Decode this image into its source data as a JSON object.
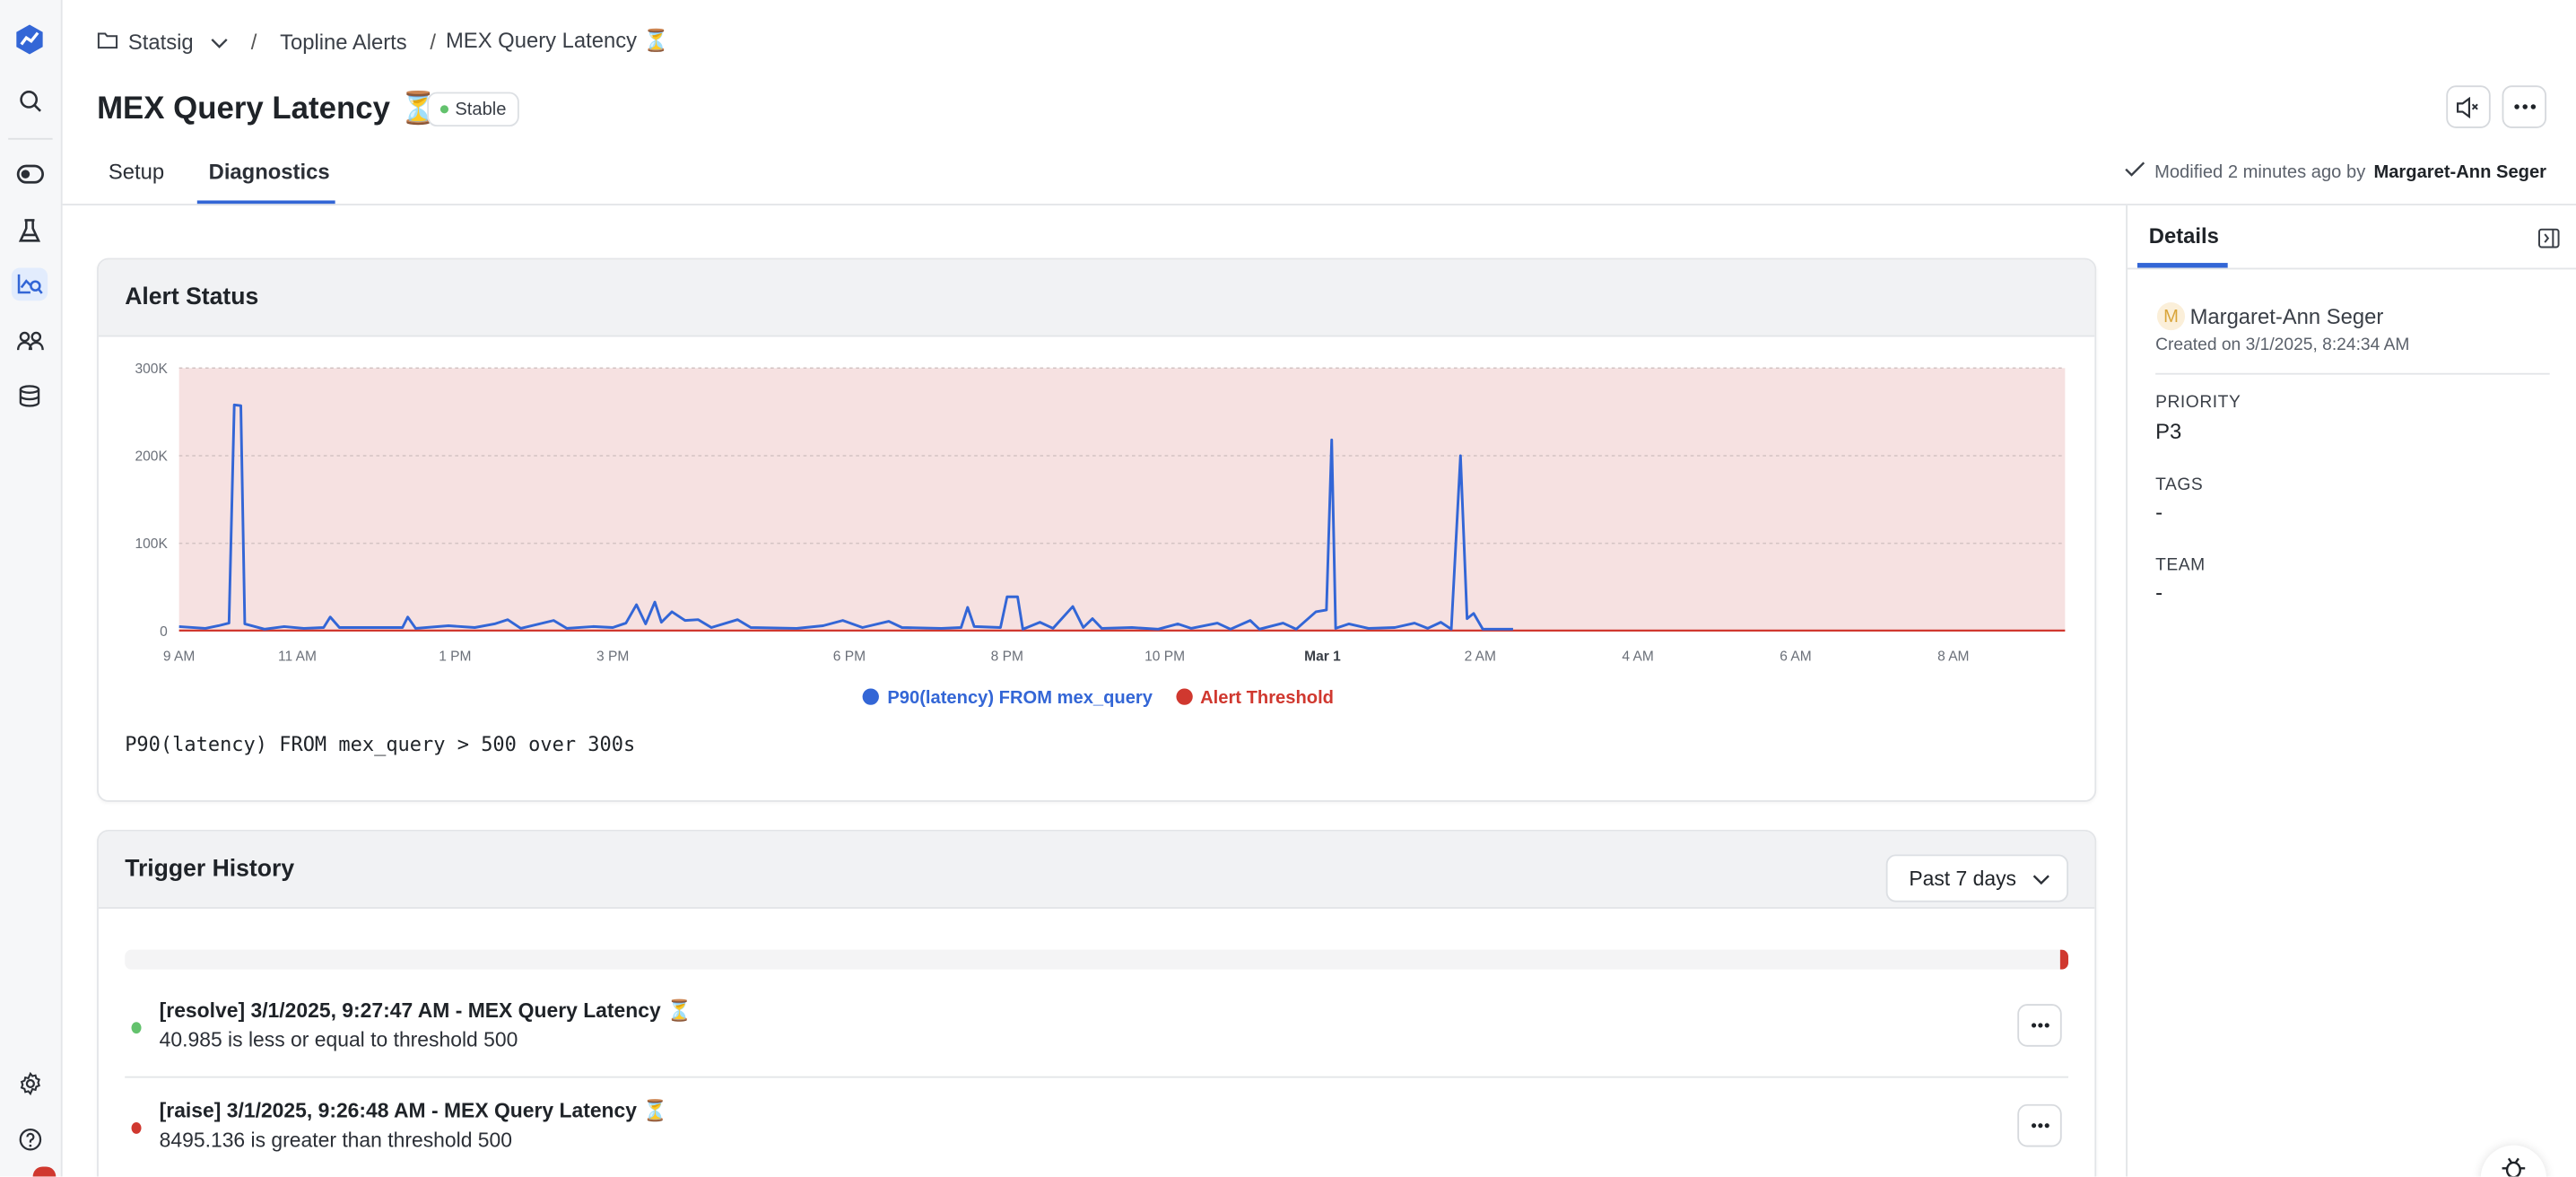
{
  "sidebar": {
    "items": [
      {
        "icon": "logo-icon"
      },
      {
        "icon": "search-icon"
      },
      {
        "icon": "toggle-icon"
      },
      {
        "icon": "flask-icon"
      },
      {
        "icon": "chart-search-icon",
        "active": true
      },
      {
        "icon": "users-icon"
      },
      {
        "icon": "database-icon"
      },
      {
        "icon": "gear-icon"
      },
      {
        "icon": "help-icon"
      }
    ],
    "brand_color": "#3366d6"
  },
  "breadcrumb": {
    "root": "Statsig",
    "folder": "Topline Alerts",
    "current": "MEX Query Latency ⏳",
    "separator": "/"
  },
  "header": {
    "title": "MEX Query Latency ⏳",
    "status_badge": "Stable",
    "status_color": "#63c26d",
    "modified_prefix": "Modified 2 minutes ago by",
    "modified_by": "Margaret-Ann Seger"
  },
  "tabs": [
    {
      "label": "Setup",
      "active": false
    },
    {
      "label": "Diagnostics",
      "active": true
    }
  ],
  "alert_status": {
    "title": "Alert Status",
    "condition": "P90(latency) FROM mex_query > 500 over 300s"
  },
  "chart_data": {
    "type": "line",
    "title": "",
    "xlabel": "",
    "ylabel": "",
    "ylim": [
      0,
      300000
    ],
    "y_ticks": [
      {
        "value": 0,
        "label": "0"
      },
      {
        "value": 100000,
        "label": "100K"
      },
      {
        "value": 200000,
        "label": "200K"
      },
      {
        "value": 300000,
        "label": "300K"
      }
    ],
    "x_range": [
      "2025-02-28T09:30",
      "2025-03-01T09:25"
    ],
    "x_ticks": [
      {
        "time": "2025-02-28T09:30",
        "label": "9 AM"
      },
      {
        "time": "2025-02-28T11:00",
        "label": "11 AM"
      },
      {
        "time": "2025-02-28T13:00",
        "label": "1 PM"
      },
      {
        "time": "2025-02-28T15:00",
        "label": "3 PM"
      },
      {
        "time": "2025-02-28T18:00",
        "label": "6 PM"
      },
      {
        "time": "2025-02-28T20:00",
        "label": "8 PM"
      },
      {
        "time": "2025-02-28T22:00",
        "label": "10 PM"
      },
      {
        "time": "2025-03-01T00:00",
        "label": "Mar 1",
        "bold": true
      },
      {
        "time": "2025-03-01T02:00",
        "label": "2 AM"
      },
      {
        "time": "2025-03-01T04:00",
        "label": "4 AM"
      },
      {
        "time": "2025-03-01T06:00",
        "label": "6 AM"
      },
      {
        "time": "2025-03-01T08:00",
        "label": "8 AM"
      }
    ],
    "grid": true,
    "legend_position": "bottom",
    "threshold_region_color": "#f6e1e1",
    "series": [
      {
        "name": "P90(latency) FROM mex_query",
        "color": "#3366d6",
        "points": [
          [
            "2025-02-28T09:30",
            5000
          ],
          [
            "2025-02-28T09:50",
            3000
          ],
          [
            "2025-02-28T10:00",
            6000
          ],
          [
            "2025-02-28T10:08",
            9000
          ],
          [
            "2025-02-28T10:12",
            258000
          ],
          [
            "2025-02-28T10:17",
            257000
          ],
          [
            "2025-02-28T10:20",
            8000
          ],
          [
            "2025-02-28T10:35",
            2000
          ],
          [
            "2025-02-28T10:50",
            5000
          ],
          [
            "2025-02-28T11:05",
            3000
          ],
          [
            "2025-02-28T11:20",
            4000
          ],
          [
            "2025-02-28T11:25",
            16000
          ],
          [
            "2025-02-28T11:32",
            4000
          ],
          [
            "2025-02-28T12:00",
            4000
          ],
          [
            "2025-02-28T12:20",
            4000
          ],
          [
            "2025-02-28T12:24",
            16000
          ],
          [
            "2025-02-28T12:30",
            3000
          ],
          [
            "2025-02-28T12:55",
            6000
          ],
          [
            "2025-02-28T13:15",
            4000
          ],
          [
            "2025-02-28T13:30",
            8000
          ],
          [
            "2025-02-28T13:40",
            13000
          ],
          [
            "2025-02-28T13:50",
            3000
          ],
          [
            "2025-02-28T14:15",
            12000
          ],
          [
            "2025-02-28T14:25",
            3000
          ],
          [
            "2025-02-28T14:45",
            5000
          ],
          [
            "2025-02-28T15:00",
            4000
          ],
          [
            "2025-02-28T15:10",
            9000
          ],
          [
            "2025-02-28T15:18",
            30000
          ],
          [
            "2025-02-28T15:25",
            8000
          ],
          [
            "2025-02-28T15:32",
            33000
          ],
          [
            "2025-02-28T15:37",
            10000
          ],
          [
            "2025-02-28T15:45",
            22000
          ],
          [
            "2025-02-28T15:55",
            12000
          ],
          [
            "2025-02-28T16:05",
            13000
          ],
          [
            "2025-02-28T16:15",
            4000
          ],
          [
            "2025-02-28T16:35",
            13000
          ],
          [
            "2025-02-28T16:45",
            4000
          ],
          [
            "2025-02-28T17:20",
            3000
          ],
          [
            "2025-02-28T17:40",
            6000
          ],
          [
            "2025-02-28T17:55",
            12000
          ],
          [
            "2025-02-28T18:10",
            4000
          ],
          [
            "2025-02-28T18:30",
            11000
          ],
          [
            "2025-02-28T18:40",
            4000
          ],
          [
            "2025-02-28T19:10",
            3000
          ],
          [
            "2025-02-28T19:25",
            4000
          ],
          [
            "2025-02-28T19:30",
            27000
          ],
          [
            "2025-02-28T19:35",
            5000
          ],
          [
            "2025-02-28T19:55",
            4000
          ],
          [
            "2025-02-28T20:00",
            39000
          ],
          [
            "2025-02-28T20:08",
            39000
          ],
          [
            "2025-02-28T20:12",
            2000
          ],
          [
            "2025-02-28T20:25",
            10000
          ],
          [
            "2025-02-28T20:35",
            3000
          ],
          [
            "2025-02-28T20:50",
            28000
          ],
          [
            "2025-02-28T20:58",
            4000
          ],
          [
            "2025-02-28T21:05",
            14000
          ],
          [
            "2025-02-28T21:12",
            3000
          ],
          [
            "2025-02-28T21:35",
            4000
          ],
          [
            "2025-02-28T21:55",
            2000
          ],
          [
            "2025-02-28T22:10",
            8000
          ],
          [
            "2025-02-28T22:20",
            3000
          ],
          [
            "2025-02-28T22:40",
            9000
          ],
          [
            "2025-02-28T22:50",
            2000
          ],
          [
            "2025-02-28T23:05",
            12000
          ],
          [
            "2025-02-28T23:12",
            2000
          ],
          [
            "2025-02-28T23:30",
            9000
          ],
          [
            "2025-02-28T23:40",
            2000
          ],
          [
            "2025-02-28T23:55",
            22000
          ],
          [
            "2025-03-01T00:03",
            24000
          ],
          [
            "2025-03-01T00:07",
            218000
          ],
          [
            "2025-03-01T00:10",
            3000
          ],
          [
            "2025-03-01T00:20",
            8000
          ],
          [
            "2025-03-01T00:35",
            3000
          ],
          [
            "2025-03-01T00:55",
            4000
          ],
          [
            "2025-03-01T01:10",
            9000
          ],
          [
            "2025-03-01T01:20",
            3000
          ],
          [
            "2025-03-01T01:30",
            10000
          ],
          [
            "2025-03-01T01:38",
            2000
          ],
          [
            "2025-03-01T01:45",
            200000
          ],
          [
            "2025-03-01T01:50",
            14000
          ],
          [
            "2025-03-01T01:55",
            20000
          ],
          [
            "2025-03-01T02:02",
            2000
          ],
          [
            "2025-03-01T02:25",
            2000
          ]
        ]
      },
      {
        "name": "Alert Threshold",
        "color": "#d0382f",
        "value": 500
      }
    ]
  },
  "trigger_history": {
    "title": "Trigger History",
    "range_select": "Past 7 days",
    "range_fill": 0.004,
    "items": [
      {
        "title": "[resolve] 3/1/2025, 9:27:47 AM - MEX Query Latency ⏳",
        "detail": "40.985 is less or equal to threshold 500",
        "status_color": "#63c26d"
      },
      {
        "title": "[raise] 3/1/2025, 9:26:48 AM - MEX Query Latency ⏳",
        "detail": "8495.136 is greater than threshold 500",
        "status_color": "#d0382f"
      }
    ]
  },
  "details": {
    "tab": "Details",
    "avatar_initial": "M",
    "creator": "Margaret-Ann Seger",
    "created": "Created on 3/1/2025, 8:24:34 AM",
    "fields": [
      {
        "label": "PRIORITY",
        "value": "P3"
      },
      {
        "label": "TAGS",
        "value": "-"
      },
      {
        "label": "TEAM",
        "value": "-"
      }
    ]
  }
}
